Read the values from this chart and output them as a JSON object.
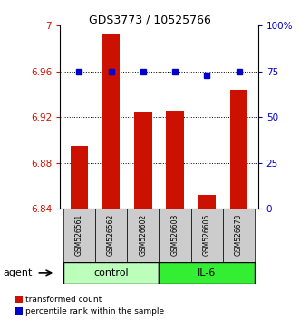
{
  "title": "GDS3773 / 10525766",
  "samples": [
    "GSM526561",
    "GSM526562",
    "GSM526602",
    "GSM526603",
    "GSM526605",
    "GSM526678"
  ],
  "bar_values": [
    6.895,
    6.993,
    6.925,
    6.926,
    6.852,
    6.944
  ],
  "dot_values": [
    75,
    75,
    75,
    75,
    73,
    75
  ],
  "ylim_left": [
    6.84,
    7.0
  ],
  "ylim_right": [
    0,
    100
  ],
  "yticks_left": [
    6.84,
    6.88,
    6.92,
    6.96,
    7.0
  ],
  "yticks_right": [
    0,
    25,
    50,
    75,
    100
  ],
  "ytick_labels_right": [
    "0",
    "25",
    "50",
    "75",
    "100%"
  ],
  "ytick_labels_left": [
    "6.84",
    "6.88",
    "6.92",
    "6.96",
    "7"
  ],
  "bar_color": "#cc1100",
  "dot_color": "#0000cc",
  "bar_bottom": 6.84,
  "groups": [
    {
      "label": "control",
      "indices": [
        0,
        1,
        2
      ],
      "color": "#bbffbb"
    },
    {
      "label": "IL-6",
      "indices": [
        3,
        4,
        5
      ],
      "color": "#33ee33"
    }
  ],
  "agent_label": "agent",
  "legend_bar_label": "transformed count",
  "legend_dot_label": "percentile rank within the sample",
  "axis_label_color_left": "#cc1100",
  "axis_label_color_right": "#0000cc",
  "background_color": "#ffffff",
  "sample_box_color": "#cccccc",
  "grid_dotted_ticks": [
    6.88,
    6.92,
    6.96
  ]
}
